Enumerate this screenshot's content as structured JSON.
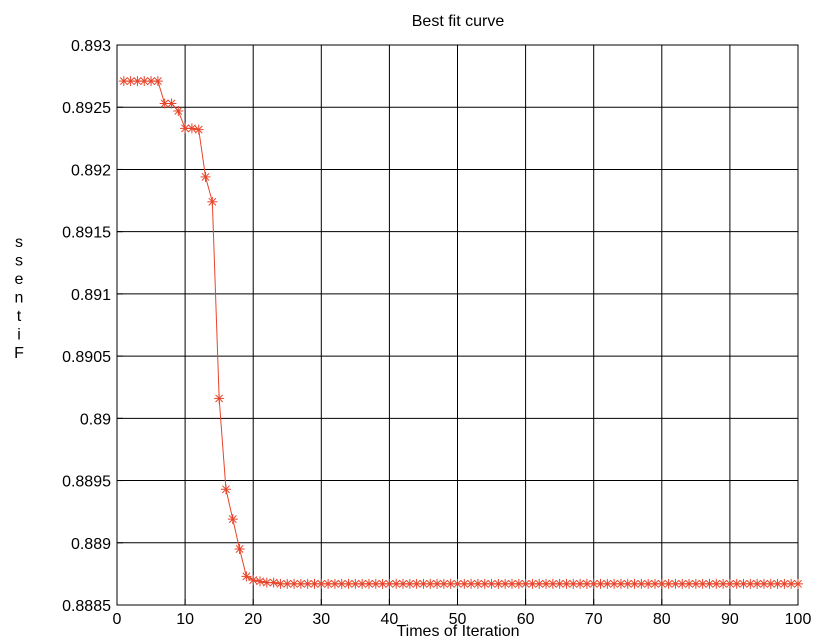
{
  "chart_data": {
    "type": "line",
    "title": "Best fit curve",
    "xlabel": "Times of Iteration",
    "ylabel": "ssentiF",
    "xlim": [
      0,
      100
    ],
    "ylim": [
      0.8885,
      0.893
    ],
    "grid": true,
    "x_ticks": [
      0,
      10,
      20,
      30,
      40,
      50,
      60,
      70,
      80,
      90,
      100
    ],
    "x_tick_labels": [
      "0",
      "10",
      "20",
      "30",
      "40",
      "50",
      "60",
      "70",
      "80",
      "90",
      "100"
    ],
    "y_ticks": [
      0.8885,
      0.889,
      0.8895,
      0.89,
      0.8905,
      0.891,
      0.8915,
      0.892,
      0.8925,
      0.893
    ],
    "y_tick_labels": [
      "0.8885",
      "0.889",
      "0.8895",
      "0.89",
      "0.8905",
      "0.891",
      "0.8915",
      "0.892",
      "0.8925",
      "0.893"
    ],
    "series": [
      {
        "color": "#e8442a",
        "marker": "asterisk",
        "x": [
          1,
          2,
          3,
          4,
          5,
          6,
          7,
          8,
          9,
          10,
          11,
          12,
          13,
          14,
          15,
          16,
          17,
          18,
          19,
          20,
          21,
          22,
          23,
          24,
          25,
          26,
          27,
          28,
          29,
          30,
          31,
          32,
          33,
          34,
          35,
          36,
          37,
          38,
          39,
          40,
          41,
          42,
          43,
          44,
          45,
          46,
          47,
          48,
          49,
          50,
          51,
          52,
          53,
          54,
          55,
          56,
          57,
          58,
          59,
          60,
          61,
          62,
          63,
          64,
          65,
          66,
          67,
          68,
          69,
          70,
          71,
          72,
          73,
          74,
          75,
          76,
          77,
          78,
          79,
          80,
          81,
          82,
          83,
          84,
          85,
          86,
          87,
          88,
          89,
          90,
          91,
          92,
          93,
          94,
          95,
          96,
          97,
          98,
          99,
          100
        ],
        "y": [
          0.89271,
          0.89271,
          0.89271,
          0.89271,
          0.89271,
          0.89271,
          0.89253,
          0.89253,
          0.89247,
          0.89233,
          0.89233,
          0.89232,
          0.89194,
          0.89174,
          0.89016,
          0.88943,
          0.88919,
          0.88895,
          0.88873,
          0.8887,
          0.88869,
          0.88868,
          0.88868,
          0.88867,
          0.88867,
          0.88867,
          0.88867,
          0.88867,
          0.88867,
          0.88867,
          0.88867,
          0.88867,
          0.88867,
          0.88867,
          0.88867,
          0.88867,
          0.88867,
          0.88867,
          0.88867,
          0.88867,
          0.88867,
          0.88867,
          0.88867,
          0.88867,
          0.88867,
          0.88867,
          0.88867,
          0.88867,
          0.88867,
          0.88867,
          0.88867,
          0.88867,
          0.88867,
          0.88867,
          0.88867,
          0.88867,
          0.88867,
          0.88867,
          0.88867,
          0.88867,
          0.88867,
          0.88867,
          0.88867,
          0.88867,
          0.88867,
          0.88867,
          0.88867,
          0.88867,
          0.88867,
          0.88867,
          0.88867,
          0.88867,
          0.88867,
          0.88867,
          0.88867,
          0.88867,
          0.88867,
          0.88867,
          0.88867,
          0.88867,
          0.88867,
          0.88867,
          0.88867,
          0.88867,
          0.88867,
          0.88867,
          0.88867,
          0.88867,
          0.88867,
          0.88867,
          0.88867,
          0.88867,
          0.88867,
          0.88867,
          0.88867,
          0.88867,
          0.88867,
          0.88867,
          0.88867,
          0.88867
        ]
      }
    ]
  }
}
